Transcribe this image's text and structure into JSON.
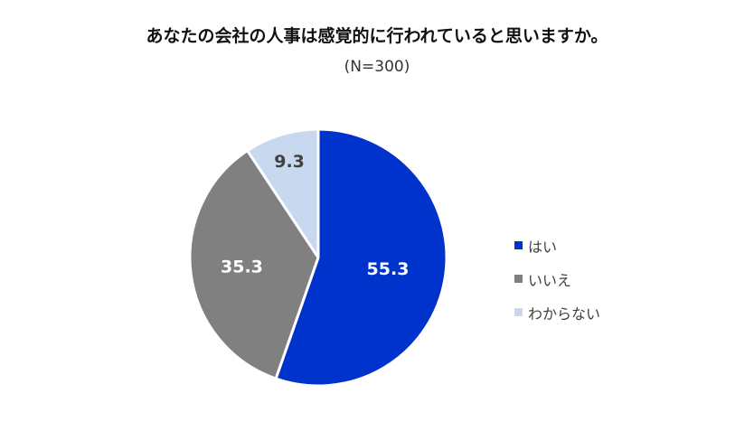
{
  "chart_data": {
    "type": "pie",
    "title": "あなたの会社の人事は感覚的に行われていると思いますか。",
    "subtitle": "(N=300)",
    "categories": [
      "はい",
      "いいえ",
      "わからない"
    ],
    "values": [
      55.3,
      35.3,
      9.3
    ],
    "labels": [
      "55.3",
      "35.3",
      "9.3"
    ],
    "colors": [
      "#0033CC",
      "#808080",
      "#C8D8EE"
    ],
    "label_colors": [
      "#ffffff",
      "#ffffff",
      "#404040"
    ],
    "legend_position": "right"
  }
}
